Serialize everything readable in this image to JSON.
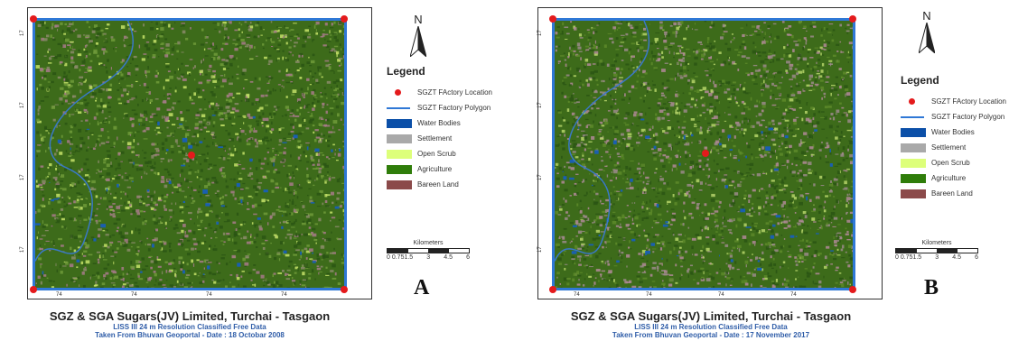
{
  "panels": [
    {
      "letter": "A",
      "caption_title": "SGZ & SGA Sugars(JV) Limited, Turchai - Tasgaon",
      "caption_line2": "LISS III 24 m Resolution Classified Free Data",
      "caption_line3": "Taken From Bhuvan Geoportal - Date : 18 Octobar 2008",
      "north_label": "N",
      "legend_title": "Legend",
      "scale_title": "Kilometers",
      "scale_ticks": [
        "0 0.751.5",
        "3",
        "4.5",
        "6"
      ],
      "tick_labels": [
        "74",
        "74",
        "74",
        "74"
      ],
      "lat_labels": [
        "17",
        "17",
        "17",
        "17"
      ]
    },
    {
      "letter": "B",
      "caption_title": "SGZ & SGA Sugars(JV) Limited, Turchai - Tasgaon",
      "caption_line2": "LISS III 24 m Resolution Classified Free Data",
      "caption_line3": "Taken From Bhuvan Geoportal - Date : 17 November 2017",
      "north_label": "N",
      "legend_title": "Legend",
      "scale_title": "Kilometers",
      "scale_ticks": [
        "0 0.751.5",
        "3",
        "4.5",
        "6"
      ],
      "tick_labels": [
        "74",
        "74",
        "74",
        "74"
      ],
      "lat_labels": [
        "17",
        "17",
        "17",
        "17"
      ]
    }
  ],
  "legend_items": [
    {
      "label": "SGZT FActory Location",
      "symbol": "dot",
      "color": "#e41a1c"
    },
    {
      "label": "SGZT Factory Polygon",
      "symbol": "line",
      "color": "#2f78d6"
    },
    {
      "label": "Water Bodies",
      "symbol": "patch",
      "color": "#0b4fa8"
    },
    {
      "label": "Settlement",
      "symbol": "patch",
      "color": "#a9a9a9"
    },
    {
      "label": "Open Scrub",
      "symbol": "patch",
      "color": "#ddff7a"
    },
    {
      "label": "Agriculture",
      "symbol": "patch",
      "color": "#2f7d0a"
    },
    {
      "label": "Bareen Land",
      "symbol": "patch",
      "color": "#8b4a4a"
    }
  ],
  "colors": {
    "agriculture": "#3d6b1a",
    "polygon": "#2f78d6",
    "factory": "#e41a1c"
  }
}
